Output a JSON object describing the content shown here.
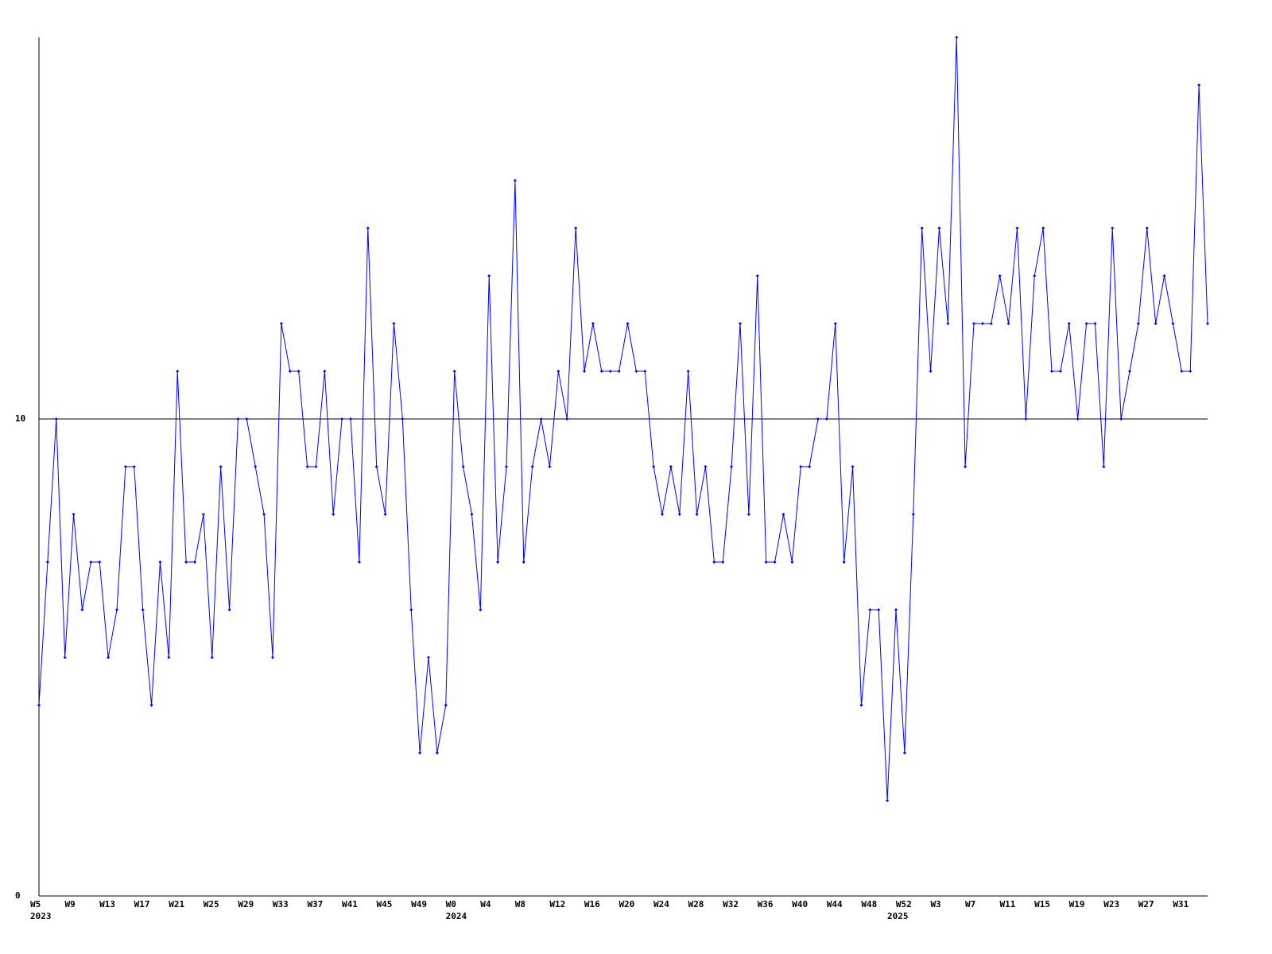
{
  "chart_data": {
    "type": "line",
    "color": "#0000ff",
    "grid": true,
    "ylim": [
      0,
      18
    ],
    "yticks": [
      0,
      10
    ],
    "categories": [
      "W5",
      null,
      null,
      null,
      "W9",
      null,
      null,
      null,
      "W13",
      null,
      null,
      null,
      "W17",
      null,
      null,
      null,
      "W21",
      null,
      null,
      null,
      "W25",
      null,
      null,
      null,
      "W29",
      null,
      null,
      null,
      "W33",
      null,
      null,
      null,
      "W37",
      null,
      null,
      null,
      "W41",
      null,
      null,
      null,
      "W45",
      null,
      null,
      null,
      "W49",
      null,
      null,
      null,
      "W0",
      null,
      null,
      null,
      "W4",
      null,
      null,
      null,
      "W8",
      null,
      null,
      null,
      "W12",
      null,
      null,
      null,
      "W16",
      null,
      null,
      null,
      "W20",
      null,
      null,
      null,
      "W24",
      null,
      null,
      null,
      "W28",
      null,
      null,
      null,
      "W32",
      null,
      null,
      null,
      "W36",
      null,
      null,
      null,
      "W40",
      null,
      null,
      null,
      "W44",
      null,
      null,
      null,
      "W48",
      null,
      null,
      null,
      "W52",
      null,
      null,
      null,
      "W3",
      null,
      null,
      null,
      "W7",
      null,
      null,
      null,
      "W11",
      null,
      null,
      null,
      "W15",
      null,
      null,
      null,
      "W19",
      null,
      null,
      null,
      "W23",
      null,
      null,
      null,
      "W27",
      null,
      null,
      null,
      "W31",
      null,
      null,
      null
    ],
    "years": [
      "2023",
      null,
      null,
      null,
      null,
      null,
      null,
      null,
      null,
      null,
      null,
      null,
      null,
      null,
      null,
      null,
      null,
      null,
      null,
      null,
      null,
      null,
      null,
      null,
      null,
      null,
      null,
      null,
      null,
      null,
      null,
      null,
      null,
      null,
      null,
      null,
      null,
      null,
      null,
      null,
      null,
      null,
      null,
      null,
      null,
      null,
      null,
      null,
      "2024",
      null,
      null,
      null,
      null,
      null,
      null,
      null,
      null,
      null,
      null,
      null,
      null,
      null,
      null,
      null,
      null,
      null,
      null,
      null,
      null,
      null,
      null,
      null,
      null,
      null,
      null,
      null,
      null,
      null,
      null,
      null,
      null,
      null,
      null,
      null,
      null,
      null,
      null,
      null,
      null,
      null,
      null,
      null,
      null,
      null,
      null,
      null,
      null,
      null,
      null,
      "2025",
      null,
      null,
      null,
      null,
      null,
      null,
      null,
      null,
      null,
      null,
      null,
      null,
      null,
      null,
      null,
      null,
      null,
      null,
      null,
      null,
      null,
      null,
      null,
      null,
      null,
      null,
      null,
      null,
      null,
      null,
      null,
      null,
      null,
      null
    ],
    "values": [
      4,
      7,
      10,
      5,
      8,
      6,
      7,
      7,
      5,
      6,
      9,
      9,
      6,
      4,
      7,
      5,
      11,
      7,
      7,
      8,
      5,
      9,
      6,
      10,
      10,
      9,
      8,
      5,
      12,
      11,
      11,
      9,
      9,
      11,
      8,
      10,
      10,
      7,
      14,
      9,
      8,
      12,
      10,
      6,
      3,
      5,
      3,
      4,
      11,
      9,
      8,
      6,
      13,
      7,
      9,
      15,
      7,
      9,
      10,
      9,
      11,
      10,
      14,
      11,
      12,
      11,
      11,
      11,
      12,
      11,
      11,
      9,
      8,
      9,
      8,
      11,
      8,
      9,
      7,
      7,
      9,
      12,
      8,
      13,
      7,
      7,
      8,
      7,
      9,
      9,
      10,
      10,
      12,
      7,
      9,
      4,
      6,
      6,
      2,
      6,
      3,
      8,
      14,
      11,
      14,
      12,
      18,
      9,
      12,
      12,
      12,
      13,
      12,
      14,
      10,
      13,
      14,
      11,
      11,
      12,
      10,
      12,
      12,
      9,
      14,
      10,
      11,
      12,
      14,
      12,
      13,
      12,
      11,
      11,
      17,
      12
    ]
  }
}
